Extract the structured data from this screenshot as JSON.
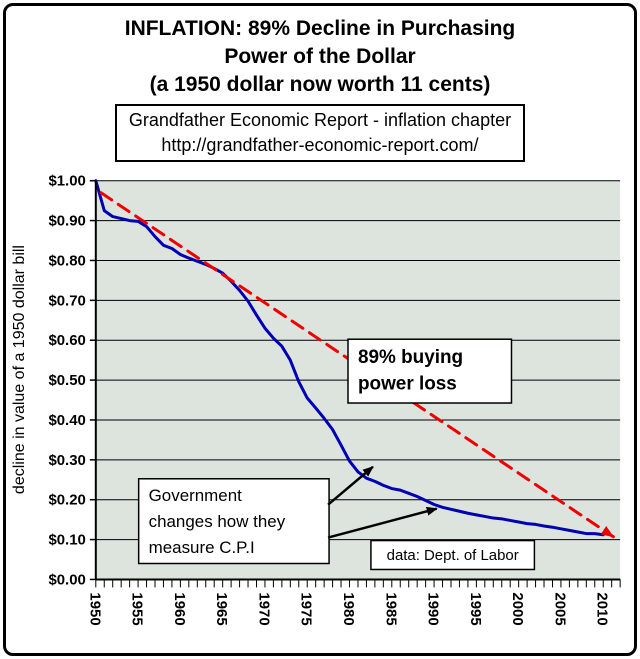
{
  "header": {
    "title_line1": "INFLATION: 89% Decline in Purchasing",
    "title_line2": "Power of the Dollar",
    "title_line3": "(a 1950 dollar now worth 11 cents)",
    "source_line1": "Grandfather Economic Report - inflation chapter",
    "source_line2": "http://grandfather-economic-report.com/"
  },
  "chart_data": {
    "type": "line",
    "title": "INFLATION: 89% Decline in Purchasing Power of the Dollar",
    "subtitle": "(a 1950 dollar now worth 11 cents)",
    "xlabel": "",
    "ylabel": "decline in value of a 1950 dollar bill",
    "xlim": [
      1950,
      2012
    ],
    "ylim": [
      0,
      1
    ],
    "grid": "horizontal-only",
    "legend": "none",
    "plot_bg": "#dde3dd",
    "y_ticks": [
      {
        "label": "$1.00",
        "value": 1.0
      },
      {
        "label": "$0.90",
        "value": 0.9
      },
      {
        "label": "$0.80",
        "value": 0.8
      },
      {
        "label": "$0.70",
        "value": 0.7
      },
      {
        "label": "$0.60",
        "value": 0.6
      },
      {
        "label": "$0.50",
        "value": 0.5
      },
      {
        "label": "$0.40",
        "value": 0.4
      },
      {
        "label": "$0.30",
        "value": 0.3
      },
      {
        "label": "$0.20",
        "value": 0.2
      },
      {
        "label": "$0.10",
        "value": 0.1
      },
      {
        "label": "$0.00",
        "value": 0.0
      }
    ],
    "x_ticks": [
      1950,
      1955,
      1960,
      1965,
      1970,
      1975,
      1980,
      1985,
      1990,
      1995,
      2000,
      2005,
      2010
    ],
    "series": [
      {
        "id": "actual-dollar-value",
        "name": "value of a 1950 dollar bill (actual, CPI)",
        "color": "#0000b4",
        "style": "solid",
        "width": 3,
        "x": [
          1950,
          1951,
          1952,
          1953,
          1954,
          1955,
          1956,
          1957,
          1958,
          1959,
          1960,
          1961,
          1962,
          1963,
          1964,
          1965,
          1966,
          1967,
          1968,
          1969,
          1970,
          1971,
          1972,
          1973,
          1974,
          1975,
          1976,
          1977,
          1978,
          1979,
          1980,
          1981,
          1982,
          1983,
          1984,
          1985,
          1986,
          1987,
          1988,
          1989,
          1990,
          1991,
          1992,
          1993,
          1994,
          1995,
          1996,
          1997,
          1998,
          1999,
          2000,
          2001,
          2002,
          2003,
          2004,
          2005,
          2006,
          2007,
          2008,
          2009,
          2010
        ],
        "y": [
          1.0,
          0.925,
          0.91,
          0.905,
          0.9,
          0.898,
          0.885,
          0.86,
          0.838,
          0.83,
          0.815,
          0.806,
          0.798,
          0.79,
          0.78,
          0.768,
          0.748,
          0.725,
          0.698,
          0.663,
          0.63,
          0.605,
          0.585,
          0.55,
          0.496,
          0.455,
          0.43,
          0.404,
          0.376,
          0.337,
          0.297,
          0.27,
          0.254,
          0.246,
          0.236,
          0.228,
          0.224,
          0.216,
          0.208,
          0.198,
          0.188,
          0.181,
          0.176,
          0.171,
          0.166,
          0.162,
          0.158,
          0.154,
          0.152,
          0.148,
          0.144,
          0.14,
          0.138,
          0.134,
          0.131,
          0.127,
          0.123,
          0.119,
          0.115,
          0.115,
          0.112
        ]
      },
      {
        "id": "trend-line",
        "name": "89% straight-line decline trend",
        "color": "#ee0000",
        "style": "dashed",
        "dash": "13 8",
        "width": 3,
        "arrow_end": true,
        "x": [
          1950.6,
          2011.2
        ],
        "y": [
          0.97,
          0.107
        ]
      }
    ],
    "annotations": [
      {
        "id": "loss-label",
        "lines": [
          "89% buying",
          "power loss"
        ]
      },
      {
        "id": "cpi-note",
        "lines": [
          "Government",
          "changes how they",
          "measure C.P.I"
        ]
      },
      {
        "id": "source-note",
        "lines": [
          "data: Dept. of Labor"
        ]
      }
    ]
  }
}
